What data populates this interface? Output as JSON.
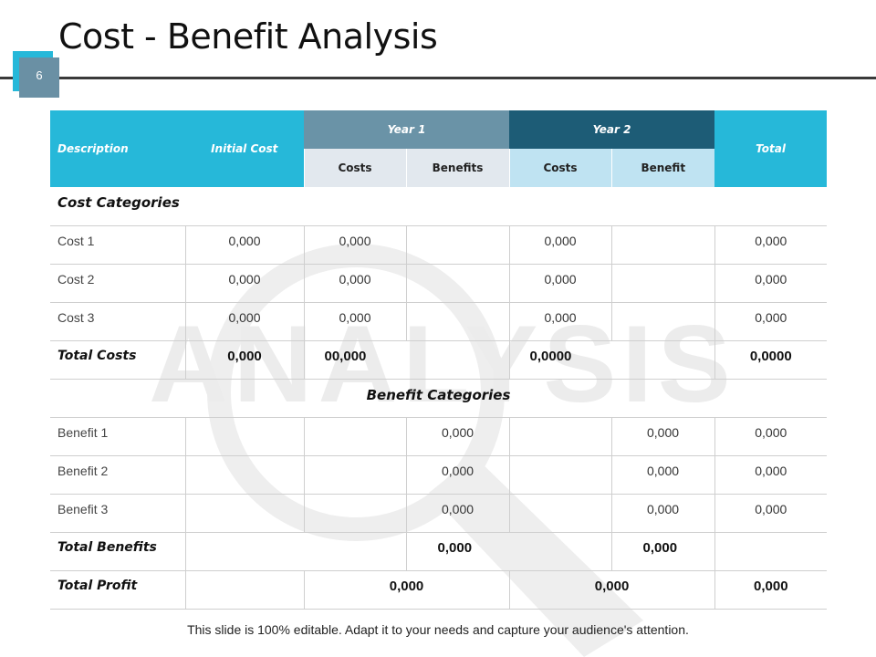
{
  "slide": {
    "title": "Cost - Benefit Analysis",
    "number": "6",
    "watermark_text": "ANALYSIS",
    "footer": "This slide is 100% editable. Adapt it to your needs and capture your audience's attention."
  },
  "table": {
    "headers": {
      "description": "Description",
      "initial_cost": "Initial Cost",
      "year1": "Year 1",
      "year2": "Year 2",
      "total": "Total",
      "y1_costs": "Costs",
      "y1_benefits": "Benefits",
      "y2_costs": "Costs",
      "y2_benefit": "Benefit"
    },
    "cost_section_label": "Cost Categories",
    "cost_rows": [
      {
        "label": "Cost 1",
        "initial": "0,000",
        "y1_cost": "0,000",
        "y1_benefit": "",
        "y2_cost": "0,000",
        "y2_benefit": "",
        "total": "0,000"
      },
      {
        "label": "Cost 2",
        "initial": "0,000",
        "y1_cost": "0,000",
        "y1_benefit": "",
        "y2_cost": "0,000",
        "y2_benefit": "",
        "total": "0,000"
      },
      {
        "label": "Cost 3",
        "initial": "0,000",
        "y1_cost": "0,000",
        "y1_benefit": "",
        "y2_cost": "0,000",
        "y2_benefit": "",
        "total": "0,000"
      }
    ],
    "total_costs": {
      "label": "Total Costs",
      "initial": "0,000",
      "y1_cost": "00,000",
      "y2_cost": "0,0000",
      "total": "0,0000"
    },
    "benefit_section_label": "Benefit Categories",
    "benefit_rows": [
      {
        "label": "Benefit 1",
        "initial": "",
        "y1_cost": "",
        "y1_benefit": "0,000",
        "y2_cost": "",
        "y2_benefit": "0,000",
        "total": "0,000"
      },
      {
        "label": "Benefit 2",
        "initial": "",
        "y1_cost": "",
        "y1_benefit": "0,000",
        "y2_cost": "",
        "y2_benefit": "0,000",
        "total": "0,000"
      },
      {
        "label": "Benefit 3",
        "initial": "",
        "y1_cost": "",
        "y1_benefit": "0,000",
        "y2_cost": "",
        "y2_benefit": "0,000",
        "total": "0,000"
      }
    ],
    "total_benefits": {
      "label": "Total Benefits",
      "y1_benefit": "0,000",
      "y2_benefit": "0,000"
    },
    "total_profit": {
      "label": "Total Profit",
      "year1": "0,000",
      "year2": "0,000",
      "total": "0,000"
    }
  }
}
